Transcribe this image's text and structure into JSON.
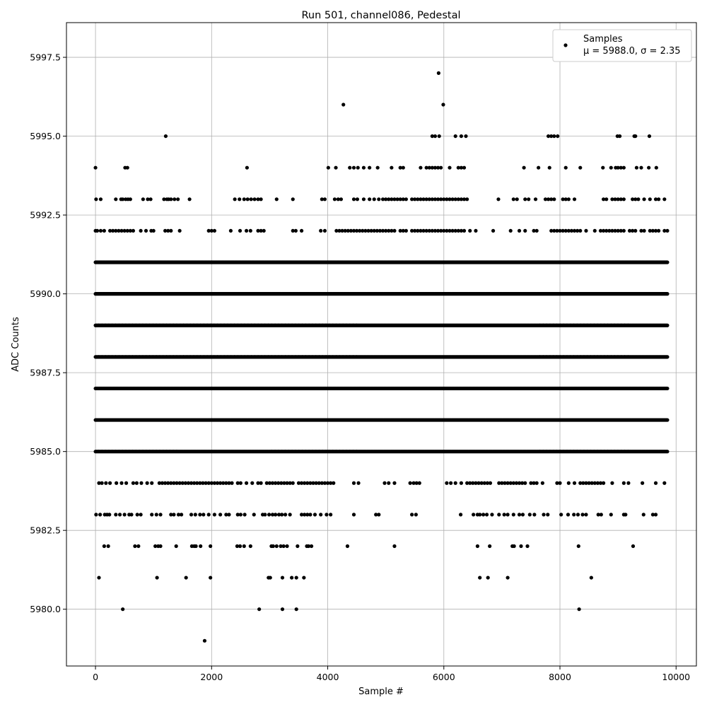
{
  "chart_data": {
    "type": "scatter",
    "title": "Run 501, channel086, Pedestal",
    "xlabel": "Sample #",
    "ylabel": "ADC Counts",
    "xlim": [
      -500,
      10350
    ],
    "ylim": [
      5978.2,
      5998.6
    ],
    "xticks": [
      0,
      2000,
      4000,
      6000,
      8000,
      10000
    ],
    "xtick_labels": [
      "0",
      "2000",
      "4000",
      "6000",
      "8000",
      "10000"
    ],
    "yticks": [
      5980.0,
      5982.5,
      5985.0,
      5987.5,
      5990.0,
      5992.5,
      5995.0,
      5997.5
    ],
    "ytick_labels": [
      "5980.0",
      "5982.5",
      "5985.0",
      "5987.5",
      "5990.0",
      "5992.5",
      "5995.0",
      "5997.5"
    ],
    "grid": true,
    "legend_position": "top-right",
    "series": [
      {
        "name": "Samples",
        "color": "#000000",
        "marker": "circle",
        "n_samples": 9850,
        "x_range": [
          0,
          9850
        ],
        "levels": [
          {
            "y": 5979,
            "x": [
              1880
            ]
          },
          {
            "y": 5980,
            "x": [
              470,
              2820,
              3220,
              3460,
              8330
            ]
          },
          {
            "y": 5981,
            "x": [
              60,
              1060,
              1560,
              1980,
              2980,
              3010,
              3220,
              3380,
              3460,
              3590,
              6620,
              6760,
              7100,
              8540
            ]
          },
          {
            "y": 5982,
            "x": [
              150,
              220,
              680,
              740,
              1030,
              1080,
              1120,
              1390,
              1660,
              1700,
              1730,
              1810,
              1980,
              2440,
              2490,
              2560,
              2670,
              3030,
              3060,
              3120,
              3190,
              3240,
              3300,
              3480,
              3640,
              3670,
              3720,
              4340,
              5150,
              6580,
              6790,
              7180,
              7210,
              7330,
              7440,
              8320,
              9260
            ]
          },
          {
            "y": 5983,
            "x": [
              10,
              80,
              160,
              200,
              240,
              350,
              420,
              500,
              580,
              620,
              720,
              780,
              970,
              1050,
              1120,
              1300,
              1350,
              1430,
              1480,
              1650,
              1720,
              1800,
              1860,
              1950,
              2050,
              2150,
              2250,
              2300,
              2450,
              2500,
              2570,
              2730,
              2880,
              2920,
              2990,
              3050,
              3100,
              3160,
              3210,
              3270,
              3350,
              3550,
              3600,
              3650,
              3700,
              3780,
              3880,
              3980,
              4050,
              4450,
              4830,
              4880,
              5450,
              5520,
              6290,
              6510,
              6580,
              6620,
              6680,
              6740,
              6830,
              6950,
              7040,
              7100,
              7200,
              7300,
              7360,
              7480,
              7560,
              7720,
              7790,
              8020,
              8140,
              8240,
              8310,
              8390,
              8450,
              8660,
              8710,
              8880,
              9100,
              9130,
              9440,
              9600,
              9650
            ]
          },
          {
            "y": 5984,
            "x": [
              60,
              110,
              180,
              250,
              360,
              450,
              530,
              650,
              710,
              790,
              890,
              970,
              1100,
              1150,
              1200,
              1250,
              1300,
              1350,
              1400,
              1450,
              1500,
              1550,
              1600,
              1650,
              1700,
              1750,
              1800,
              1850,
              1900,
              1950,
              2000,
              2050,
              2100,
              2150,
              2200,
              2250,
              2300,
              2350,
              2450,
              2500,
              2600,
              2700,
              2800,
              2850,
              2950,
              3000,
              3050,
              3100,
              3150,
              3200,
              3250,
              3300,
              3350,
              3400,
              3500,
              3550,
              3600,
              3650,
              3700,
              3750,
              3800,
              3850,
              3900,
              3950,
              4000,
              4050,
              4100,
              4450,
              4530,
              4980,
              5050,
              5150,
              5420,
              5480,
              5530,
              5580,
              6050,
              6120,
              6200,
              6300,
              6400,
              6450,
              6500,
              6550,
              6600,
              6650,
              6700,
              6750,
              6800,
              6950,
              7000,
              7050,
              7100,
              7150,
              7200,
              7250,
              7300,
              7350,
              7400,
              7500,
              7550,
              7600,
              7700,
              7950,
              8000,
              8150,
              8250,
              8350,
              8400,
              8450,
              8500,
              8550,
              8600,
              8650,
              8700,
              8750,
              8900,
              9100,
              9180,
              9420,
              9650,
              9800
            ]
          },
          {
            "y": 5985,
            "x": [
              0,
              9850
            ]
          },
          {
            "y": 5986,
            "x": [
              0,
              9850
            ]
          },
          {
            "y": 5987,
            "x": [
              0,
              9850
            ]
          },
          {
            "y": 5988,
            "x": [
              0,
              9850
            ]
          },
          {
            "y": 5989,
            "x": [
              0,
              9850
            ]
          },
          {
            "y": 5990,
            "x": [
              0,
              9850
            ]
          },
          {
            "y": 5991,
            "x": [
              0,
              9850
            ]
          },
          {
            "y": 5992,
            "x": [
              0,
              30,
              90,
              150,
              250,
              300,
              350,
              400,
              450,
              500,
              550,
              600,
              650,
              780,
              870,
              960,
              1000,
              1200,
              1250,
              1300,
              1450,
              1950,
              2000,
              2050,
              2330,
              2490,
              2600,
              2670,
              2800,
              2850,
              2900,
              3400,
              3450,
              3550,
              3880,
              3950,
              4150,
              4200,
              4250,
              4300,
              4350,
              4400,
              4450,
              4500,
              4550,
              4600,
              4650,
              4700,
              4750,
              4800,
              4850,
              4900,
              4950,
              5000,
              5050,
              5100,
              5150,
              5250,
              5300,
              5350,
              5450,
              5500,
              5550,
              5600,
              5650,
              5700,
              5750,
              5800,
              5850,
              5900,
              5950,
              6000,
              6050,
              6100,
              6150,
              6200,
              6250,
              6300,
              6350,
              6450,
              6550,
              6850,
              7150,
              7300,
              7400,
              7550,
              7600,
              7850,
              7900,
              7950,
              8000,
              8050,
              8100,
              8150,
              8200,
              8250,
              8300,
              8350,
              8450,
              8600,
              8700,
              8750,
              8800,
              8850,
              8900,
              8950,
              9000,
              9050,
              9100,
              9200,
              9250,
              9300,
              9400,
              9450,
              9550,
              9600,
              9650,
              9700,
              9800,
              9850
            ]
          },
          {
            "y": 5993,
            "x": [
              10,
              90,
              350,
              440,
              470,
              520,
              560,
              600,
              820,
              900,
              950,
              1180,
              1230,
              1260,
              1300,
              1360,
              1420,
              1620,
              2400,
              2480,
              2560,
              2620,
              2680,
              2740,
              2800,
              2850,
              3120,
              3400,
              3900,
              3950,
              4120,
              4180,
              4230,
              4450,
              4510,
              4620,
              4720,
              4800,
              4880,
              4950,
              5000,
              5050,
              5100,
              5150,
              5200,
              5250,
              5300,
              5350,
              5450,
              5500,
              5550,
              5600,
              5650,
              5700,
              5750,
              5800,
              5850,
              5900,
              5950,
              6000,
              6050,
              6100,
              6150,
              6200,
              6250,
              6300,
              6350,
              6400,
              6940,
              7200,
              7260,
              7400,
              7460,
              7580,
              7750,
              7800,
              7850,
              7900,
              8050,
              8100,
              8150,
              8250,
              8750,
              8800,
              8900,
              8950,
              9000,
              9050,
              9100,
              9250,
              9300,
              9350,
              9450,
              9550,
              9650,
              9700,
              9800
            ]
          },
          {
            "y": 5994,
            "x": [
              0,
              510,
              550,
              2610,
              4010,
              4140,
              4380,
              4450,
              4520,
              4620,
              4720,
              4860,
              5100,
              5250,
              5300,
              5600,
              5700,
              5750,
              5800,
              5850,
              5900,
              5950,
              6100,
              6250,
              6300,
              6350,
              7380,
              7630,
              7820,
              8100,
              8350,
              8740,
              8880,
              8960,
              9000,
              9050,
              9100,
              9320,
              9400,
              9530,
              9660
            ]
          },
          {
            "y": 5995,
            "x": [
              1210,
              5800,
              5850,
              5920,
              6200,
              6300,
              6380,
              7800,
              7850,
              7900,
              7960,
              8990,
              9030,
              9280,
              9300,
              9540
            ]
          },
          {
            "y": 5996,
            "x": [
              4270,
              5990
            ]
          },
          {
            "y": 5997,
            "x": [
              5910
            ]
          }
        ]
      }
    ],
    "legend": {
      "label": "Samples",
      "stats": "μ = 5988.0, σ = 2.35"
    }
  }
}
